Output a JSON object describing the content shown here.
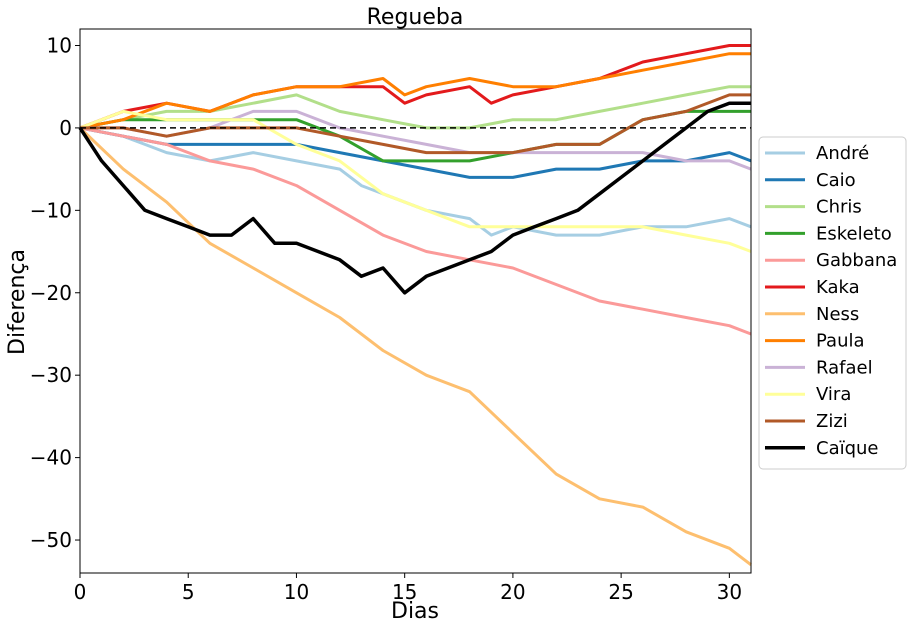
{
  "chart_data": {
    "type": "line",
    "title": "Regueba",
    "xlabel": "Dias",
    "ylabel": "Diferença",
    "xlim": [
      0,
      31
    ],
    "ylim": [
      -54,
      12
    ],
    "xticks": [
      0,
      5,
      10,
      15,
      20,
      25,
      30
    ],
    "yticks": [
      10,
      0,
      -10,
      -20,
      -30,
      -40,
      -50
    ],
    "xtick_labels": [
      "0",
      "5",
      "10",
      "15",
      "20",
      "25",
      "30"
    ],
    "ytick_labels": [
      "10",
      "0",
      "−10",
      "−20",
      "−30",
      "−40",
      "−50"
    ],
    "reference_line": {
      "y": 0,
      "style": "dashed"
    },
    "grid": false,
    "legend": "right-outside",
    "series": [
      {
        "name": "André",
        "color": "#a6cee3",
        "width": 3,
        "x": [
          0,
          2,
          3,
          4,
          6,
          8,
          10,
          12,
          13,
          14,
          16,
          18,
          19,
          20,
          22,
          24,
          26,
          28,
          30,
          31
        ],
        "y": [
          0,
          -1,
          -2,
          -3,
          -4,
          -3,
          -4,
          -5,
          -7,
          -8,
          -10,
          -11,
          -13,
          -12,
          -13,
          -13,
          -12,
          -12,
          -11,
          -12
        ]
      },
      {
        "name": "Caio",
        "color": "#1f78b4",
        "width": 3,
        "x": [
          0,
          2,
          4,
          6,
          8,
          10,
          12,
          14,
          16,
          18,
          20,
          22,
          24,
          26,
          28,
          30,
          31
        ],
        "y": [
          0,
          -1,
          -2,
          -2,
          -2,
          -2,
          -3,
          -4,
          -5,
          -6,
          -6,
          -5,
          -5,
          -4,
          -4,
          -3,
          -4
        ]
      },
      {
        "name": "Chris",
        "color": "#b2df8a",
        "width": 3,
        "x": [
          0,
          2,
          4,
          6,
          8,
          10,
          12,
          14,
          16,
          18,
          20,
          22,
          24,
          26,
          28,
          30,
          31
        ],
        "y": [
          0,
          1,
          2,
          2,
          3,
          4,
          2,
          1,
          0,
          0,
          1,
          1,
          2,
          3,
          4,
          5,
          5
        ]
      },
      {
        "name": "Eskeleto",
        "color": "#33a02c",
        "width": 3,
        "x": [
          0,
          2,
          4,
          6,
          8,
          10,
          12,
          14,
          16,
          18,
          20,
          22,
          24,
          26,
          28,
          30,
          31
        ],
        "y": [
          0,
          1,
          1,
          1,
          1,
          1,
          -1,
          -4,
          -4,
          -4,
          -3,
          -2,
          -2,
          1,
          2,
          2,
          2
        ]
      },
      {
        "name": "Gabbana",
        "color": "#fb9a99",
        "width": 3,
        "x": [
          0,
          2,
          4,
          6,
          8,
          10,
          12,
          14,
          16,
          18,
          20,
          22,
          24,
          26,
          28,
          30,
          31
        ],
        "y": [
          0,
          -1,
          -2,
          -4,
          -5,
          -7,
          -10,
          -13,
          -15,
          -16,
          -17,
          -19,
          -21,
          -22,
          -23,
          -24,
          -25
        ]
      },
      {
        "name": "Kaka",
        "color": "#e31a1c",
        "width": 3,
        "x": [
          0,
          2,
          4,
          6,
          8,
          10,
          12,
          14,
          15,
          16,
          18,
          19,
          20,
          22,
          24,
          26,
          28,
          30,
          31
        ],
        "y": [
          0,
          2,
          3,
          2,
          4,
          5,
          5,
          5,
          3,
          4,
          5,
          3,
          4,
          5,
          6,
          8,
          9,
          10,
          10
        ]
      },
      {
        "name": "Ness",
        "color": "#fdbf6f",
        "width": 3,
        "x": [
          0,
          2,
          4,
          6,
          8,
          10,
          12,
          14,
          16,
          18,
          20,
          22,
          24,
          26,
          28,
          30,
          31
        ],
        "y": [
          0,
          -5,
          -9,
          -14,
          -17,
          -20,
          -23,
          -27,
          -30,
          -32,
          -37,
          -42,
          -45,
          -46,
          -49,
          -51,
          -53
        ]
      },
      {
        "name": "Paula",
        "color": "#ff7f00",
        "width": 3,
        "x": [
          0,
          2,
          4,
          6,
          8,
          10,
          12,
          14,
          15,
          16,
          18,
          20,
          22,
          24,
          26,
          28,
          30,
          31
        ],
        "y": [
          0,
          1,
          3,
          2,
          4,
          5,
          5,
          6,
          4,
          5,
          6,
          5,
          5,
          6,
          7,
          8,
          9,
          9
        ]
      },
      {
        "name": "Rafael",
        "color": "#cab2d6",
        "width": 3,
        "x": [
          0,
          2,
          4,
          6,
          8,
          10,
          12,
          14,
          16,
          18,
          20,
          22,
          24,
          26,
          28,
          30,
          31
        ],
        "y": [
          0,
          0,
          -1,
          0,
          2,
          2,
          0,
          -1,
          -2,
          -3,
          -3,
          -3,
          -3,
          -3,
          -4,
          -4,
          -5
        ]
      },
      {
        "name": "Vira",
        "color": "#ffff99",
        "width": 3,
        "x": [
          0,
          2,
          4,
          6,
          8,
          10,
          12,
          14,
          16,
          18,
          20,
          22,
          24,
          26,
          28,
          30,
          31
        ],
        "y": [
          0,
          2,
          1,
          1,
          1,
          -2,
          -4,
          -8,
          -10,
          -12,
          -12,
          -12,
          -12,
          -12,
          -13,
          -14,
          -15
        ]
      },
      {
        "name": "Zizi",
        "color": "#b15928",
        "width": 3,
        "x": [
          0,
          2,
          4,
          6,
          8,
          10,
          12,
          14,
          16,
          18,
          20,
          22,
          24,
          26,
          28,
          30,
          31
        ],
        "y": [
          0,
          0,
          -1,
          0,
          0,
          0,
          -1,
          -2,
          -3,
          -3,
          -3,
          -2,
          -2,
          1,
          2,
          4,
          4
        ]
      },
      {
        "name": "Caïque",
        "color": "#000000",
        "width": 3.5,
        "x": [
          0,
          1,
          2,
          3,
          4,
          5,
          6,
          7,
          8,
          9,
          10,
          11,
          12,
          13,
          14,
          15,
          16,
          17,
          18,
          19,
          20,
          21,
          22,
          23,
          24,
          25,
          26,
          27,
          28,
          29,
          30,
          31
        ],
        "y": [
          0,
          -4,
          -7,
          -10,
          -11,
          -12,
          -13,
          -13,
          -11,
          -14,
          -14,
          -15,
          -16,
          -18,
          -17,
          -20,
          -18,
          -17,
          -16,
          -15,
          -13,
          -12,
          -11,
          -10,
          -8,
          -6,
          -4,
          -2,
          0,
          2,
          3,
          3
        ]
      }
    ]
  }
}
